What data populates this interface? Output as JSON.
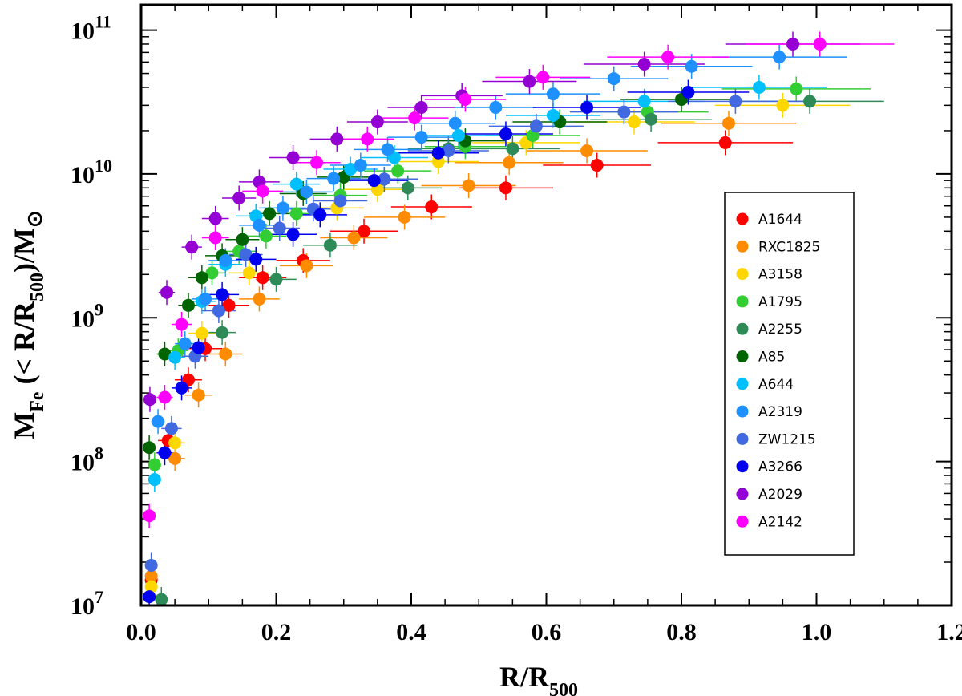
{
  "chart_data": {
    "type": "scatter",
    "title": "",
    "xlabel": {
      "main": "R/R",
      "sub": "500"
    },
    "ylabel": {
      "p1": "M",
      "p1_sub": "Fe",
      "p2": " (< R/R",
      "p2_sub": "500",
      "p3": ")/M",
      "p3_sun": "⊙"
    },
    "xlim": [
      0,
      1.2
    ],
    "ylim": [
      10000000,
      150000000000
    ],
    "yscale": "log",
    "x_ticks": [
      {
        "value": 0.0,
        "label": "0.0"
      },
      {
        "value": 0.2,
        "label": "0.2"
      },
      {
        "value": 0.4,
        "label": "0.4"
      },
      {
        "value": 0.6,
        "label": "0.6"
      },
      {
        "value": 0.8,
        "label": "0.8"
      },
      {
        "value": 1.0,
        "label": "1.0"
      },
      {
        "value": 1.2,
        "label": "1.2"
      }
    ],
    "y_ticks": [
      {
        "exp": 7,
        "base": "10",
        "label": "7"
      },
      {
        "exp": 8,
        "base": "10",
        "label": "8"
      },
      {
        "exp": 9,
        "base": "10",
        "label": "9"
      },
      {
        "exp": 10,
        "base": "10",
        "label": "10"
      },
      {
        "exp": 11,
        "base": "10",
        "label": "11"
      }
    ],
    "legend_position": "right-middle",
    "series": [
      {
        "name": "A1644",
        "color": "#ff0000",
        "points": [
          [
            0.015,
            15000000.0,
            0.008
          ],
          [
            0.04,
            140000000.0,
            0.015
          ],
          [
            0.07,
            370000000.0,
            0.02
          ],
          [
            0.095,
            610000000.0,
            0.025
          ],
          [
            0.13,
            1220000000.0,
            0.03
          ],
          [
            0.18,
            1900000000.0,
            0.035
          ],
          [
            0.24,
            2500000000.0,
            0.04
          ],
          [
            0.33,
            4000000000.0,
            0.05
          ],
          [
            0.43,
            5900000000.0,
            0.06
          ],
          [
            0.54,
            8000000000.0,
            0.07
          ],
          [
            0.675,
            11500000000.0,
            0.08
          ],
          [
            0.865,
            16500000000.0,
            0.1
          ]
        ]
      },
      {
        "name": "RXC1825",
        "color": "#ff8c00",
        "points": [
          [
            0.015,
            16000000.0,
            0.008
          ],
          [
            0.05,
            105000000.0,
            0.015
          ],
          [
            0.085,
            290000000.0,
            0.02
          ],
          [
            0.125,
            560000000.0,
            0.025
          ],
          [
            0.175,
            1350000000.0,
            0.03
          ],
          [
            0.245,
            2300000000.0,
            0.04
          ],
          [
            0.315,
            3600000000.0,
            0.05
          ],
          [
            0.39,
            5000000000.0,
            0.06
          ],
          [
            0.485,
            8300000000.0,
            0.07
          ],
          [
            0.545,
            12000000000.0,
            0.08
          ],
          [
            0.66,
            14500000000.0,
            0.09
          ],
          [
            0.87,
            22500000000.0,
            0.1
          ]
        ]
      },
      {
        "name": "A3158",
        "color": "#ffd700",
        "points": [
          [
            0.015,
            13500000.0,
            0.008
          ],
          [
            0.05,
            135000000.0,
            0.015
          ],
          [
            0.09,
            780000000.0,
            0.02
          ],
          [
            0.16,
            2050000000.0,
            0.03
          ],
          [
            0.29,
            5800000000.0,
            0.04
          ],
          [
            0.35,
            7800000000.0,
            0.05
          ],
          [
            0.44,
            12200000000.0,
            0.06
          ],
          [
            0.57,
            16500000000.0,
            0.08
          ],
          [
            0.73,
            23000000000.0,
            0.09
          ],
          [
            0.95,
            30000000000.0,
            0.1
          ]
        ]
      },
      {
        "name": "A1795",
        "color": "#32cd32",
        "points": [
          [
            0.02,
            95000000.0,
            0.008
          ],
          [
            0.055,
            590000000.0,
            0.015
          ],
          [
            0.105,
            2050000000.0,
            0.02
          ],
          [
            0.145,
            2900000000.0,
            0.025
          ],
          [
            0.185,
            3700000000.0,
            0.03
          ],
          [
            0.23,
            5300000000.0,
            0.035
          ],
          [
            0.295,
            7100000000.0,
            0.04
          ],
          [
            0.38,
            10500000000.0,
            0.05
          ],
          [
            0.48,
            15500000000.0,
            0.06
          ],
          [
            0.58,
            18500000000.0,
            0.07
          ],
          [
            0.75,
            27000000000.0,
            0.09
          ],
          [
            0.97,
            39000000000.0,
            0.11
          ]
        ]
      },
      {
        "name": "A2255",
        "color": "#2e8b57",
        "points": [
          [
            0.03,
            11000000.0,
            0.008
          ],
          [
            0.12,
            790000000.0,
            0.02
          ],
          [
            0.2,
            1850000000.0,
            0.03
          ],
          [
            0.28,
            3200000000.0,
            0.04
          ],
          [
            0.395,
            8000000000.0,
            0.05
          ],
          [
            0.455,
            15000000000.0,
            0.06
          ],
          [
            0.55,
            15000000000.0,
            0.07
          ],
          [
            0.755,
            24000000000.0,
            0.09
          ],
          [
            0.99,
            32000000000.0,
            0.11
          ]
        ]
      },
      {
        "name": "A85",
        "color": "#006400",
        "points": [
          [
            0.012,
            125000000.0,
            0.008
          ],
          [
            0.035,
            560000000.0,
            0.012
          ],
          [
            0.07,
            1220000000.0,
            0.015
          ],
          [
            0.09,
            1900000000.0,
            0.02
          ],
          [
            0.12,
            2700000000.0,
            0.025
          ],
          [
            0.15,
            3500000000.0,
            0.025
          ],
          [
            0.19,
            5300000000.0,
            0.03
          ],
          [
            0.24,
            7300000000.0,
            0.035
          ],
          [
            0.3,
            9500000000.0,
            0.04
          ],
          [
            0.36,
            9200000000.0,
            0.05
          ],
          [
            0.48,
            17000000000.0,
            0.06
          ],
          [
            0.62,
            23000000000.0,
            0.07
          ],
          [
            0.8,
            33000000000.0,
            0.09
          ]
        ]
      },
      {
        "name": "A644",
        "color": "#00bfff",
        "points": [
          [
            0.02,
            75000000.0,
            0.008
          ],
          [
            0.05,
            530000000.0,
            0.015
          ],
          [
            0.09,
            1300000000.0,
            0.02
          ],
          [
            0.125,
            2350000000.0,
            0.025
          ],
          [
            0.17,
            5100000000.0,
            0.03
          ],
          [
            0.23,
            8500000000.0,
            0.035
          ],
          [
            0.31,
            10800000000.0,
            0.04
          ],
          [
            0.375,
            13000000000.0,
            0.05
          ],
          [
            0.47,
            18500000000.0,
            0.06
          ],
          [
            0.61,
            25500000000.0,
            0.07
          ],
          [
            0.745,
            32000000000.0,
            0.09
          ],
          [
            0.915,
            40000000000.0,
            0.1
          ]
        ]
      },
      {
        "name": "A2319",
        "color": "#1e90ff",
        "points": [
          [
            0.025,
            190000000.0,
            0.01
          ],
          [
            0.065,
            660000000.0,
            0.015
          ],
          [
            0.095,
            1350000000.0,
            0.02
          ],
          [
            0.125,
            2500000000.0,
            0.025
          ],
          [
            0.175,
            4400000000.0,
            0.03
          ],
          [
            0.21,
            5800000000.0,
            0.035
          ],
          [
            0.245,
            7500000000.0,
            0.04
          ],
          [
            0.285,
            9300000000.0,
            0.04
          ],
          [
            0.325,
            11500000000.0,
            0.045
          ],
          [
            0.365,
            14800000000.0,
            0.05
          ],
          [
            0.415,
            18000000000.0,
            0.05
          ],
          [
            0.465,
            22500000000.0,
            0.06
          ],
          [
            0.525,
            29000000000.0,
            0.06
          ],
          [
            0.61,
            36000000000.0,
            0.07
          ],
          [
            0.7,
            46000000000.0,
            0.08
          ],
          [
            0.815,
            56000000000.0,
            0.09
          ],
          [
            0.945,
            65000000000.0,
            0.1
          ]
        ]
      },
      {
        "name": "ZW1215",
        "color": "#4169e1",
        "points": [
          [
            0.015,
            19000000.0,
            0.008
          ],
          [
            0.045,
            170000000.0,
            0.015
          ],
          [
            0.08,
            540000000.0,
            0.02
          ],
          [
            0.115,
            1120000000.0,
            0.025
          ],
          [
            0.155,
            2750000000.0,
            0.025
          ],
          [
            0.205,
            4200000000.0,
            0.03
          ],
          [
            0.255,
            5700000000.0,
            0.035
          ],
          [
            0.295,
            6500000000.0,
            0.04
          ],
          [
            0.36,
            9200000000.0,
            0.05
          ],
          [
            0.455,
            14500000000.0,
            0.06
          ],
          [
            0.585,
            21500000000.0,
            0.07
          ],
          [
            0.715,
            27000000000.0,
            0.08
          ],
          [
            0.88,
            32000000000.0,
            0.1
          ]
        ]
      },
      {
        "name": "A3266",
        "color": "#0000ee",
        "points": [
          [
            0.012,
            11500000.0,
            0.008
          ],
          [
            0.035,
            115000000.0,
            0.012
          ],
          [
            0.06,
            325000000.0,
            0.015
          ],
          [
            0.085,
            620000000.0,
            0.02
          ],
          [
            0.12,
            1450000000.0,
            0.025
          ],
          [
            0.17,
            2550000000.0,
            0.03
          ],
          [
            0.225,
            3800000000.0,
            0.035
          ],
          [
            0.265,
            5200000000.0,
            0.04
          ],
          [
            0.345,
            9000000000.0,
            0.05
          ],
          [
            0.44,
            14000000000.0,
            0.06
          ],
          [
            0.54,
            19000000000.0,
            0.07
          ],
          [
            0.66,
            29000000000.0,
            0.08
          ],
          [
            0.81,
            37000000000.0,
            0.09
          ]
        ]
      },
      {
        "name": "A2029",
        "color": "#9400d3",
        "points": [
          [
            0.013,
            270000000.0,
            0.008
          ],
          [
            0.038,
            1500000000.0,
            0.012
          ],
          [
            0.075,
            3100000000.0,
            0.015
          ],
          [
            0.11,
            4900000000.0,
            0.02
          ],
          [
            0.145,
            6800000000.0,
            0.025
          ],
          [
            0.175,
            8800000000.0,
            0.03
          ],
          [
            0.225,
            13000000000.0,
            0.035
          ],
          [
            0.29,
            17500000000.0,
            0.04
          ],
          [
            0.35,
            23000000000.0,
            0.045
          ],
          [
            0.415,
            29000000000.0,
            0.05
          ],
          [
            0.475,
            35000000000.0,
            0.06
          ],
          [
            0.575,
            44000000000.0,
            0.07
          ],
          [
            0.745,
            58000000000.0,
            0.09
          ],
          [
            0.965,
            80000000000.0,
            0.1
          ]
        ]
      },
      {
        "name": "A2142",
        "color": "#ff00ff",
        "points": [
          [
            0.012,
            42000000.0,
            0.008
          ],
          [
            0.035,
            280000000.0,
            0.012
          ],
          [
            0.06,
            900000000.0,
            0.015
          ],
          [
            0.11,
            3600000000.0,
            0.02
          ],
          [
            0.18,
            7600000000.0,
            0.03
          ],
          [
            0.26,
            12000000000.0,
            0.035
          ],
          [
            0.335,
            17500000000.0,
            0.04
          ],
          [
            0.405,
            24500000000.0,
            0.05
          ],
          [
            0.48,
            33000000000.0,
            0.06
          ],
          [
            0.595,
            47000000000.0,
            0.07
          ],
          [
            0.78,
            65000000000.0,
            0.09
          ],
          [
            1.005,
            80000000000.0,
            0.11
          ]
        ]
      }
    ]
  }
}
